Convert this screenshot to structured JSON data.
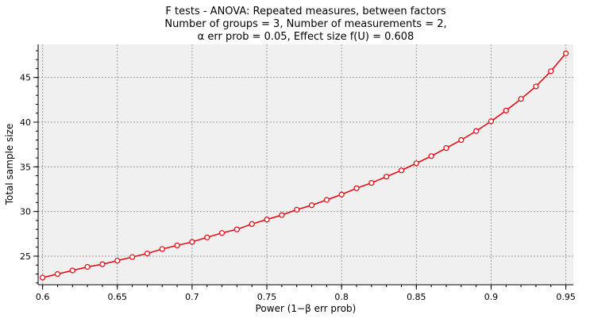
{
  "chart_data": {
    "type": "line",
    "title_lines": [
      "F tests - ANOVA: Repeated measures, between factors",
      "Number of groups = 3, Number of measurements = 2,",
      "α err prob = 0.05, Effect size f(U) = 0.608"
    ],
    "xlabel": "Power (1−β err prob)",
    "ylabel": "Total sample size",
    "xlim": [
      0.597,
      0.955
    ],
    "ylim": [
      21.8,
      48.7
    ],
    "x_ticks": [
      "0.6",
      "0.65",
      "0.7",
      "0.75",
      "0.8",
      "0.85",
      "0.9",
      "0.95"
    ],
    "y_ticks": [
      "25",
      "30",
      "35",
      "40",
      "45"
    ],
    "grid": true,
    "series": [
      {
        "color": "#e8000b",
        "x": [
          0.6,
          0.61,
          0.62,
          0.63,
          0.64,
          0.65,
          0.66,
          0.67,
          0.68,
          0.69,
          0.7,
          0.71,
          0.72,
          0.73,
          0.74,
          0.75,
          0.76,
          0.77,
          0.78,
          0.79,
          0.8,
          0.81,
          0.82,
          0.83,
          0.84,
          0.85,
          0.86,
          0.87,
          0.88,
          0.89,
          0.9,
          0.91,
          0.92,
          0.93,
          0.94,
          0.95
        ],
        "y": [
          22.6,
          23.0,
          23.4,
          23.8,
          24.1,
          24.5,
          24.9,
          25.3,
          25.8,
          26.2,
          26.6,
          27.1,
          27.6,
          28.0,
          28.6,
          29.1,
          29.6,
          30.2,
          30.7,
          31.3,
          31.9,
          32.6,
          33.2,
          33.9,
          34.6,
          35.4,
          36.2,
          37.1,
          38.0,
          39.0,
          40.1,
          41.3,
          42.6,
          44.0,
          45.7,
          47.7
        ]
      }
    ]
  }
}
